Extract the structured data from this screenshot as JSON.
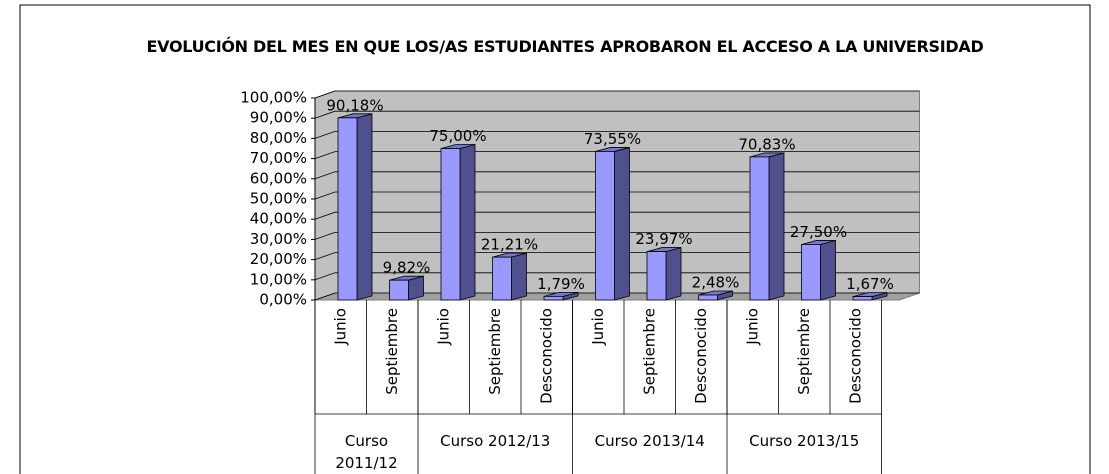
{
  "chart_data": {
    "type": "bar",
    "title": "EVOLUCIÓN DEL MES EN QUE LOS/AS ESTUDIANTES APROBARON EL ACCESO A LA UNIVERSIDAD",
    "categories": [
      "Junio",
      "Septiembre",
      "Junio",
      "Septiembre",
      "Desconocido",
      "Junio",
      "Septiembre",
      "Desconocido",
      "Junio",
      "Septiembre",
      "Desconocido"
    ],
    "groups": [
      {
        "name": "Curso 2011/12",
        "count": 2
      },
      {
        "name": "Curso 2012/13",
        "count": 3
      },
      {
        "name": "Curso 2013/14",
        "count": 3
      },
      {
        "name": "Curso 2013/15",
        "count": 3
      }
    ],
    "values": [
      90.18,
      9.82,
      75.0,
      21.21,
      1.79,
      73.55,
      23.97,
      2.48,
      70.83,
      27.5,
      1.67
    ],
    "value_labels": [
      "90,18%",
      "9,82%",
      "75,00%",
      "21,21%",
      "1,79%",
      "73,55%",
      "23,97%",
      "2,48%",
      "70,83%",
      "27,50%",
      "1,67%"
    ],
    "color": "#9999ff",
    "ylim": [
      0,
      100
    ],
    "yticks": [
      {
        "value": 0,
        "label": "0,00%"
      },
      {
        "value": 10,
        "label": "10,00%"
      },
      {
        "value": 20,
        "label": "20,00%"
      },
      {
        "value": 30,
        "label": "30,00%"
      },
      {
        "value": 40,
        "label": "40,00%"
      },
      {
        "value": 50,
        "label": "50,00%"
      },
      {
        "value": 60,
        "label": "60,00%"
      },
      {
        "value": 70,
        "label": "70,00%"
      },
      {
        "value": 80,
        "label": "80,00%"
      },
      {
        "value": 90,
        "label": "90,00%"
      },
      {
        "value": 100,
        "label": "100,00%"
      }
    ],
    "grid": true
  }
}
